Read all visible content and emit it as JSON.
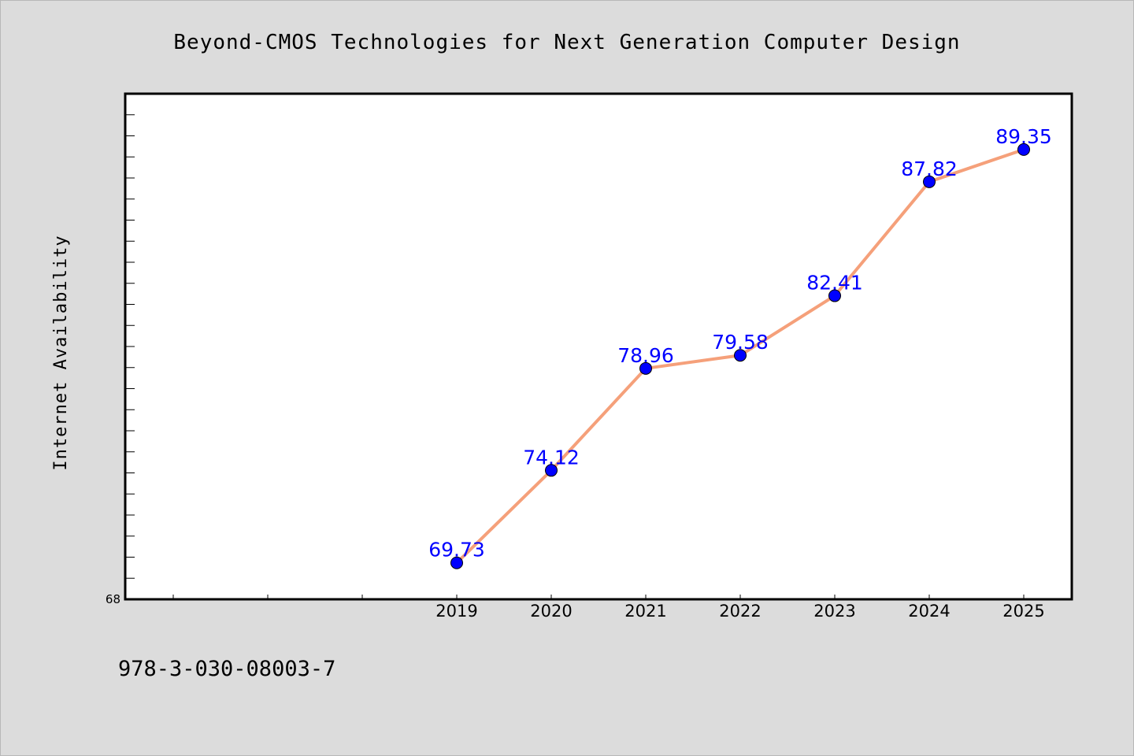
{
  "chart_data": {
    "type": "line",
    "title": "Beyond-CMOS Technologies for Next Generation Computer Design",
    "ylabel": "Internet Availability",
    "xlabel": "",
    "categories": [
      "2019",
      "2020",
      "2021",
      "2022",
      "2023",
      "2024",
      "2025"
    ],
    "series": [
      {
        "values": [
          69.73,
          74.12,
          78.96,
          79.58,
          82.41,
          87.82,
          89.35
        ],
        "data_labels": [
          "69.73",
          "74.12",
          "78.96",
          "79.58",
          "82.41",
          "87.82",
          "89.35"
        ]
      }
    ],
    "ylim": [
      68,
      92
    ],
    "y_tick_labels": [
      "68"
    ],
    "grid": false,
    "legend": "none",
    "colors": {
      "line": "#f5a07a",
      "marker": "#0000ff",
      "data_label": "#0000ff",
      "plot_background": "#ffffff",
      "page_background": "#dcdcdc"
    }
  },
  "footer": {
    "isbn": "978-3-030-08003-7"
  }
}
